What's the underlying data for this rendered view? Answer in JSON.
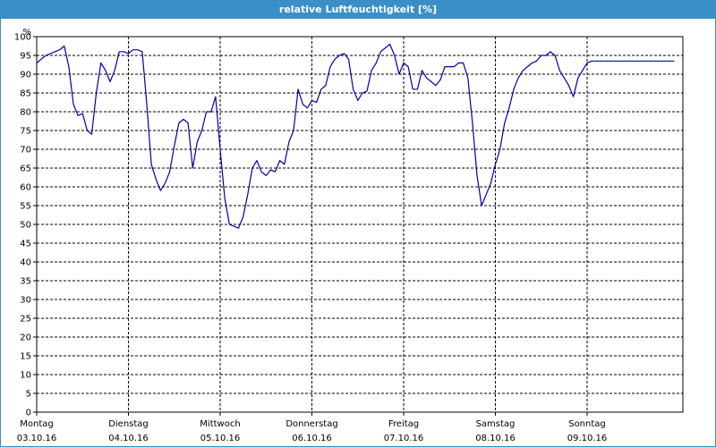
{
  "window": {
    "title": "relative Luftfeuchtigkeit [%]"
  },
  "chart_data": {
    "type": "line",
    "title": "relative Luftfeuchtigkeit [%]",
    "ylabel": "%",
    "xlabel": "",
    "ylim": [
      0,
      100
    ],
    "ytick_step": 5,
    "xlim": [
      0,
      7
    ],
    "grid": true,
    "colors": {
      "series": "#0000aa",
      "grid": "#000000",
      "axis": "#000000"
    },
    "x_ticks": [
      {
        "x": 0,
        "day": "Montag",
        "date": "03.10.16"
      },
      {
        "x": 1,
        "day": "Dienstag",
        "date": "04.10.16"
      },
      {
        "x": 2,
        "day": "Mittwoch",
        "date": "05.10.16"
      },
      {
        "x": 3,
        "day": "Donnerstag",
        "date": "06.10.16"
      },
      {
        "x": 4,
        "day": "Freitag",
        "date": "07.10.16"
      },
      {
        "x": 5,
        "day": "Samstag",
        "date": "08.10.16"
      },
      {
        "x": 6,
        "day": "Sonntag",
        "date": "09.10.16"
      }
    ],
    "series": [
      {
        "x": [
          0,
          0.05,
          0.1,
          0.15,
          0.2,
          0.25,
          0.3,
          0.35,
          0.4,
          0.45,
          0.5,
          0.55,
          0.6,
          0.65,
          0.7,
          0.75,
          0.8,
          0.85,
          0.9,
          0.95,
          1.0,
          1.05,
          1.1,
          1.15,
          1.2,
          1.25,
          1.3,
          1.35,
          1.4,
          1.45,
          1.5,
          1.55,
          1.6,
          1.65,
          1.7,
          1.75,
          1.8,
          1.85,
          1.9,
          1.95,
          2.0,
          2.05,
          2.1,
          2.15,
          2.2,
          2.25,
          2.3,
          2.35,
          2.4,
          2.45,
          2.5,
          2.55,
          2.6,
          2.65,
          2.7,
          2.75,
          2.8,
          2.85,
          2.9,
          2.95,
          3.0,
          3.05,
          3.1,
          3.15,
          3.2,
          3.25,
          3.3,
          3.35,
          3.4,
          3.45,
          3.5,
          3.55,
          3.6,
          3.65,
          3.7,
          3.75,
          3.8,
          3.85,
          3.9,
          3.95,
          4.0,
          4.05,
          4.1,
          4.15,
          4.2,
          4.25,
          4.3,
          4.35,
          4.4,
          4.45,
          4.5,
          4.55,
          4.6,
          4.65,
          4.7,
          4.75,
          4.8,
          4.85,
          4.9,
          4.95,
          5.0,
          5.05,
          5.1,
          5.15,
          5.2,
          5.25,
          5.3,
          5.35,
          5.4,
          5.45,
          5.5,
          5.55,
          5.6,
          5.65,
          5.7,
          5.75,
          5.8,
          5.85,
          5.9,
          5.95,
          6.0,
          6.05,
          6.1,
          6.15,
          6.2,
          6.25,
          6.3,
          6.35,
          6.4,
          6.45,
          6.5,
          6.55,
          6.6,
          6.65,
          6.7,
          6.75,
          6.8,
          6.85,
          6.9,
          6.95
        ],
        "y": [
          93,
          94,
          95,
          95.5,
          96,
          96.5,
          97.5,
          92,
          82,
          79,
          79.5,
          75,
          74,
          85,
          93,
          91,
          88,
          91,
          96,
          96,
          95.5,
          96.5,
          96.5,
          96,
          82,
          66,
          62,
          59,
          61,
          64,
          71,
          77,
          78,
          77,
          65,
          72,
          75,
          80,
          80,
          84,
          70,
          57,
          50,
          49.5,
          49,
          52,
          58,
          65,
          67,
          64,
          63,
          64.5,
          64,
          67,
          66,
          72,
          75,
          86,
          82,
          81,
          83,
          82.5,
          86,
          87,
          92,
          94,
          95,
          95.5,
          94,
          86,
          83,
          85,
          85.5,
          91,
          93,
          96,
          97,
          98,
          95,
          90,
          93,
          92,
          86,
          86,
          91,
          89,
          88,
          87,
          88.5,
          92,
          92,
          92,
          93,
          93,
          89,
          77,
          63,
          55,
          58,
          61,
          66,
          70,
          77,
          81,
          86,
          89,
          91,
          92,
          93,
          93.5,
          95,
          95,
          96,
          95,
          91,
          89,
          87,
          84,
          89,
          91,
          93,
          93.5,
          93.5,
          93.5,
          93.5,
          93.5,
          93.5,
          93.5,
          93.5,
          93.5,
          93.5,
          93.5,
          93.5,
          93.5,
          93.5,
          93.5,
          93.5,
          93.5,
          93.5,
          93.5
        ]
      }
    ]
  }
}
